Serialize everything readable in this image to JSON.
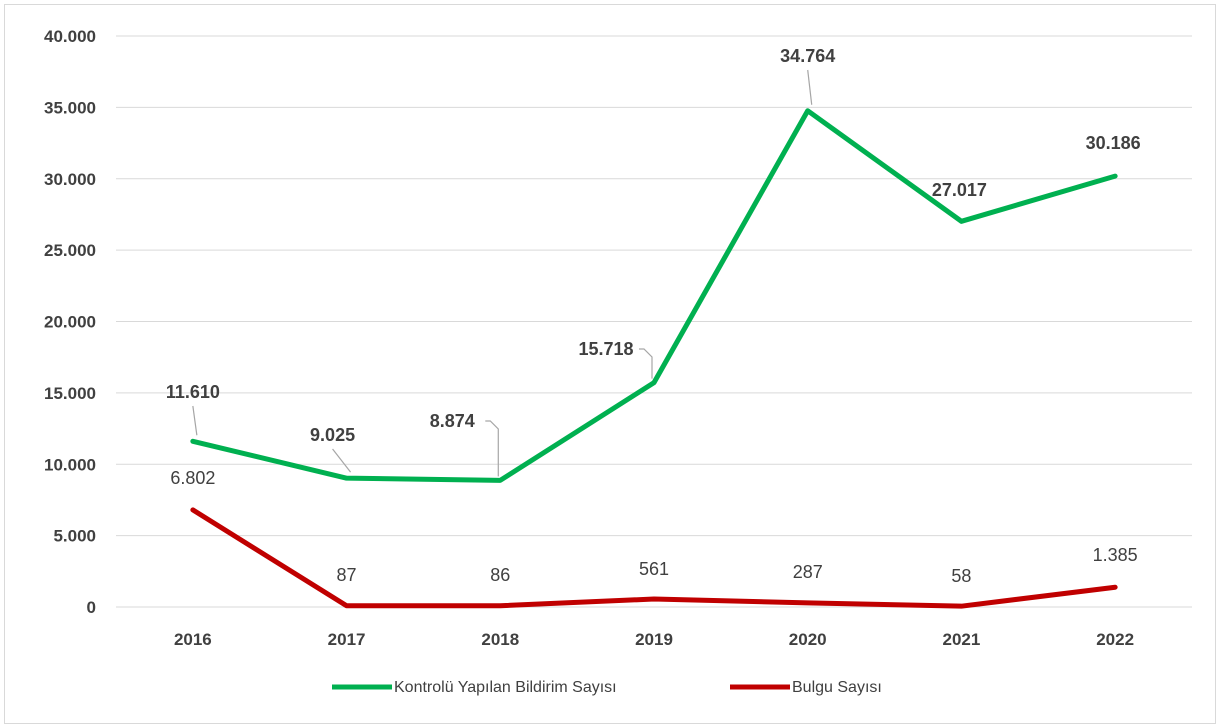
{
  "chart_data": {
    "type": "line",
    "title": "",
    "xlabel": "",
    "ylabel": "",
    "categories": [
      "2016",
      "2017",
      "2018",
      "2019",
      "2020",
      "2021",
      "2022"
    ],
    "ylim": [
      0,
      40000
    ],
    "yticks": [
      0,
      5000,
      10000,
      15000,
      20000,
      25000,
      30000,
      35000,
      40000
    ],
    "ytick_labels": [
      "0",
      "5.000",
      "10.000",
      "15.000",
      "20.000",
      "25.000",
      "30.000",
      "35.000",
      "40.000"
    ],
    "grid": "horizontal",
    "legend_position": "bottom",
    "series": [
      {
        "name": "Kontrolü Yapılan Bildirim Sayısı",
        "color": "#00b050",
        "values": [
          11610,
          9025,
          8874,
          15718,
          34764,
          27017,
          30186
        ],
        "labels": [
          "11.610",
          "9.025",
          "8.874",
          "15.718",
          "34.764",
          "27.017",
          "30.186"
        ]
      },
      {
        "name": "Bulgu Sayısı",
        "color": "#c00000",
        "values": [
          6802,
          87,
          86,
          561,
          287,
          58,
          1385
        ],
        "labels": [
          "6.802",
          "87",
          "86",
          "561",
          "287",
          "58",
          "1.385"
        ]
      }
    ]
  }
}
